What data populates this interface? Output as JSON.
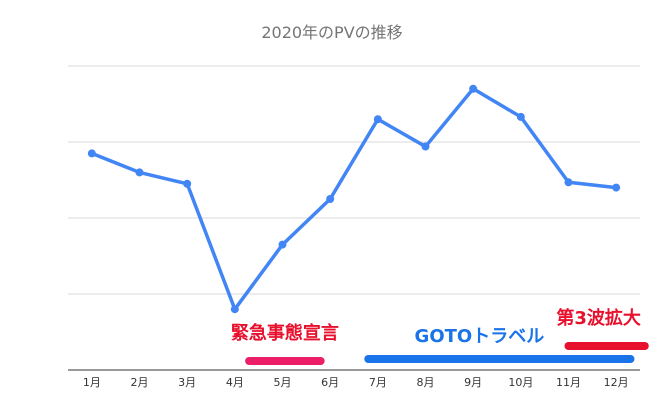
{
  "chart_data": {
    "type": "line",
    "title": "2020年のPVの推移",
    "categories": [
      "1月",
      "2月",
      "3月",
      "4月",
      "5月",
      "6月",
      "7月",
      "8月",
      "9月",
      "10月",
      "11月",
      "12月"
    ],
    "series": [
      {
        "values": [
          2.85,
          2.6,
          2.45,
          0.8,
          1.65,
          2.25,
          3.3,
          2.94,
          3.7,
          3.33,
          2.47,
          2.4
        ]
      }
    ],
    "ylim": [
      0,
      4
    ],
    "y_ticks": [
      1,
      2,
      3,
      4
    ],
    "grid": true,
    "line_color": "#4285f4",
    "annotations": [
      {
        "text": "緊急事態宣言",
        "text_color": "#e8112d",
        "bar_color": "#ec1e68",
        "x_start": 4.3,
        "x_end": 5.8
      },
      {
        "text": "GOTOトラベル",
        "text_color": "#1a73e8",
        "bar_color": "#1a73e8",
        "x_start": 6.8,
        "x_end": 12.3
      },
      {
        "text": "第3波拡大",
        "text_color": "#e8112d",
        "bar_color": "#e8112d",
        "x_start": 11.0,
        "x_end": 12.6
      }
    ]
  }
}
